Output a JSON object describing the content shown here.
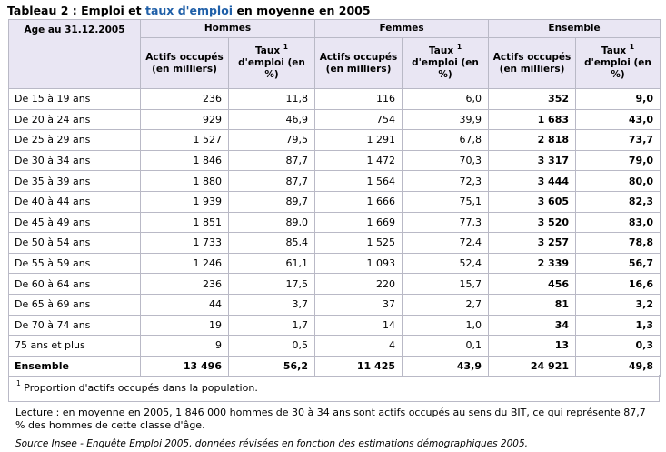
{
  "title": {
    "prefix": "Tableau 2 : Emploi et ",
    "link": "taux d'emploi",
    "suffix": " en moyenne en 2005"
  },
  "table": {
    "age_header": "Age au 31.12.2005",
    "groups": [
      "Hommes",
      "Femmes",
      "Ensemble"
    ],
    "subheaders": {
      "actifs": "Actifs occupés (en milliers)",
      "taux": "Taux",
      "taux_sup": "1",
      "taux_rest": "d'emploi (en %)"
    },
    "rows": [
      {
        "label": "De 15 à 19 ans",
        "cells": [
          "236",
          "11,8",
          "116",
          "6,0",
          "352",
          "9,0"
        ]
      },
      {
        "label": "De 20 à 24 ans",
        "cells": [
          "929",
          "46,9",
          "754",
          "39,9",
          "1 683",
          "43,0"
        ]
      },
      {
        "label": "De 25 à 29 ans",
        "cells": [
          "1 527",
          "79,5",
          "1 291",
          "67,8",
          "2 818",
          "73,7"
        ]
      },
      {
        "label": "De 30 à 34 ans",
        "cells": [
          "1 846",
          "87,7",
          "1 472",
          "70,3",
          "3 317",
          "79,0"
        ]
      },
      {
        "label": "De 35 à 39 ans",
        "cells": [
          "1 880",
          "87,7",
          "1 564",
          "72,3",
          "3 444",
          "80,0"
        ]
      },
      {
        "label": "De 40 à 44 ans",
        "cells": [
          "1 939",
          "89,7",
          "1 666",
          "75,1",
          "3 605",
          "82,3"
        ]
      },
      {
        "label": "De 45 à 49 ans",
        "cells": [
          "1 851",
          "89,0",
          "1 669",
          "77,3",
          "3 520",
          "83,0"
        ]
      },
      {
        "label": "De 50 à 54 ans",
        "cells": [
          "1 733",
          "85,4",
          "1 525",
          "72,4",
          "3 257",
          "78,8"
        ]
      },
      {
        "label": "De 55 à 59 ans",
        "cells": [
          "1 246",
          "61,1",
          "1 093",
          "52,4",
          "2 339",
          "56,7"
        ]
      },
      {
        "label": "De 60 à 64 ans",
        "cells": [
          "236",
          "17,5",
          "220",
          "15,7",
          "456",
          "16,6"
        ]
      },
      {
        "label": "De 65 à 69 ans",
        "cells": [
          "44",
          "3,7",
          "37",
          "2,7",
          "81",
          "3,2"
        ]
      },
      {
        "label": "De 70 à 74 ans",
        "cells": [
          "19",
          "1,7",
          "14",
          "1,0",
          "34",
          "1,3"
        ]
      },
      {
        "label": "75 ans et plus",
        "cells": [
          "9",
          "0,5",
          "4",
          "0,1",
          "13",
          "0,3"
        ]
      },
      {
        "label": "Ensemble",
        "cells": [
          "13 496",
          "56,2",
          "11 425",
          "43,9",
          "24 921",
          "49,8"
        ]
      }
    ]
  },
  "footnote": {
    "mark": "1",
    "text": " Proportion d'actifs occupés dans la population."
  },
  "reading": "Lecture : en moyenne en 2005, 1 846 000 hommes de 30 à 34 ans sont actifs occupés au sens du BIT, ce qui représente 87,7 % des hommes de cette classe d'âge.",
  "source": "Source Insee - Enquête Emploi 2005, données révisées en fonction des estimations démographiques 2005."
}
